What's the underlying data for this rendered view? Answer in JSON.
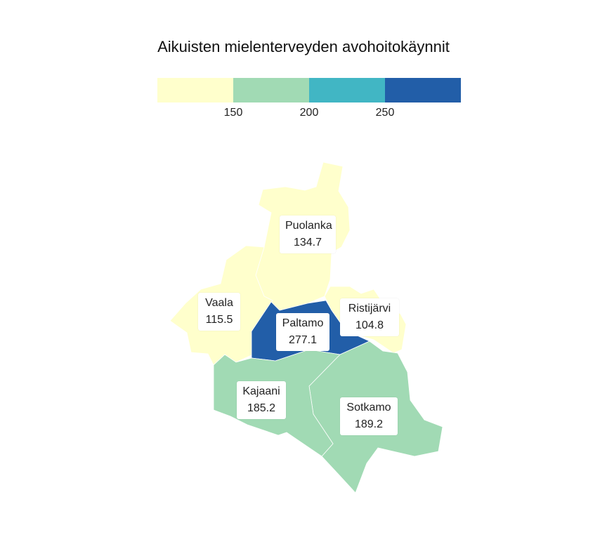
{
  "title": "Aikuisten mielenterveyden avohoitokäynnit",
  "legend": {
    "colors": [
      "#ffffcc",
      "#a1dab4",
      "#41b6c4",
      "#225ea8"
    ],
    "ticks": [
      "150",
      "200",
      "250"
    ]
  },
  "regions": [
    {
      "name": "Puolanka",
      "value": "134.7",
      "color": "#ffffcc"
    },
    {
      "name": "Vaala",
      "value": "115.5",
      "color": "#ffffcc"
    },
    {
      "name": "Paltamo",
      "value": "277.1",
      "color": "#225ea8"
    },
    {
      "name": "Ristijärvi",
      "value": "104.8",
      "color": "#ffffcc"
    },
    {
      "name": "Kajaani",
      "value": "185.2",
      "color": "#a1dab4"
    },
    {
      "name": "Sotkamo",
      "value": "189.2",
      "color": "#a1dab4"
    }
  ]
}
